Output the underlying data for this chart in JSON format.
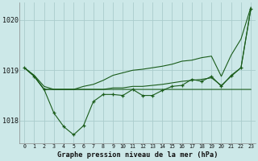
{
  "title": "Graphe pression niveau de la mer (hPa)",
  "bg_color": "#cce8e8",
  "grid_color": "#aacccc",
  "line_color": "#1a5c1a",
  "xlim": [
    -0.5,
    23.5
  ],
  "ylim": [
    1017.55,
    1020.35
  ],
  "yticks": [
    1018,
    1019,
    1020
  ],
  "xtick_labels": [
    "0",
    "1",
    "2",
    "3",
    "4",
    "5",
    "6",
    "7",
    "8",
    "9",
    "10",
    "11",
    "12",
    "13",
    "14",
    "15",
    "16",
    "17",
    "18",
    "19",
    "20",
    "21",
    "22",
    "23"
  ],
  "series_main": [
    1019.05,
    1018.88,
    1018.62,
    1018.15,
    1017.88,
    1017.72,
    1017.9,
    1018.38,
    1018.52,
    1018.52,
    1018.5,
    1018.62,
    1018.5,
    1018.5,
    1018.6,
    1018.68,
    1018.7,
    1018.82,
    1018.78,
    1018.88,
    1018.68,
    1018.9,
    1019.05,
    1020.22
  ],
  "series_smooth": [
    1019.05,
    1018.88,
    1018.62,
    1018.62,
    1018.62,
    1018.62,
    1018.62,
    1018.62,
    1018.62,
    1018.65,
    1018.65,
    1018.68,
    1018.68,
    1018.7,
    1018.72,
    1018.75,
    1018.78,
    1018.8,
    1018.82,
    1018.85,
    1018.7,
    1018.88,
    1019.05,
    1020.22
  ],
  "series_fan_upper": [
    1019.05,
    1018.9,
    1018.68,
    1018.62,
    1018.62,
    1018.62,
    1018.68,
    1018.72,
    1018.8,
    1018.9,
    1018.95,
    1019.0,
    1019.02,
    1019.05,
    1019.08,
    1019.12,
    1019.18,
    1019.2,
    1019.25,
    1019.28,
    1018.88,
    1019.3,
    1019.62,
    1020.25
  ],
  "series_flat": [
    1019.05,
    1018.88,
    1018.62,
    1018.62,
    1018.62,
    1018.62,
    1018.62,
    1018.62,
    1018.62,
    1018.62,
    1018.62,
    1018.62,
    1018.62,
    1018.62,
    1018.62,
    1018.62,
    1018.62,
    1018.62,
    1018.62,
    1018.62,
    1018.62,
    1018.62,
    1018.62,
    1018.62
  ]
}
